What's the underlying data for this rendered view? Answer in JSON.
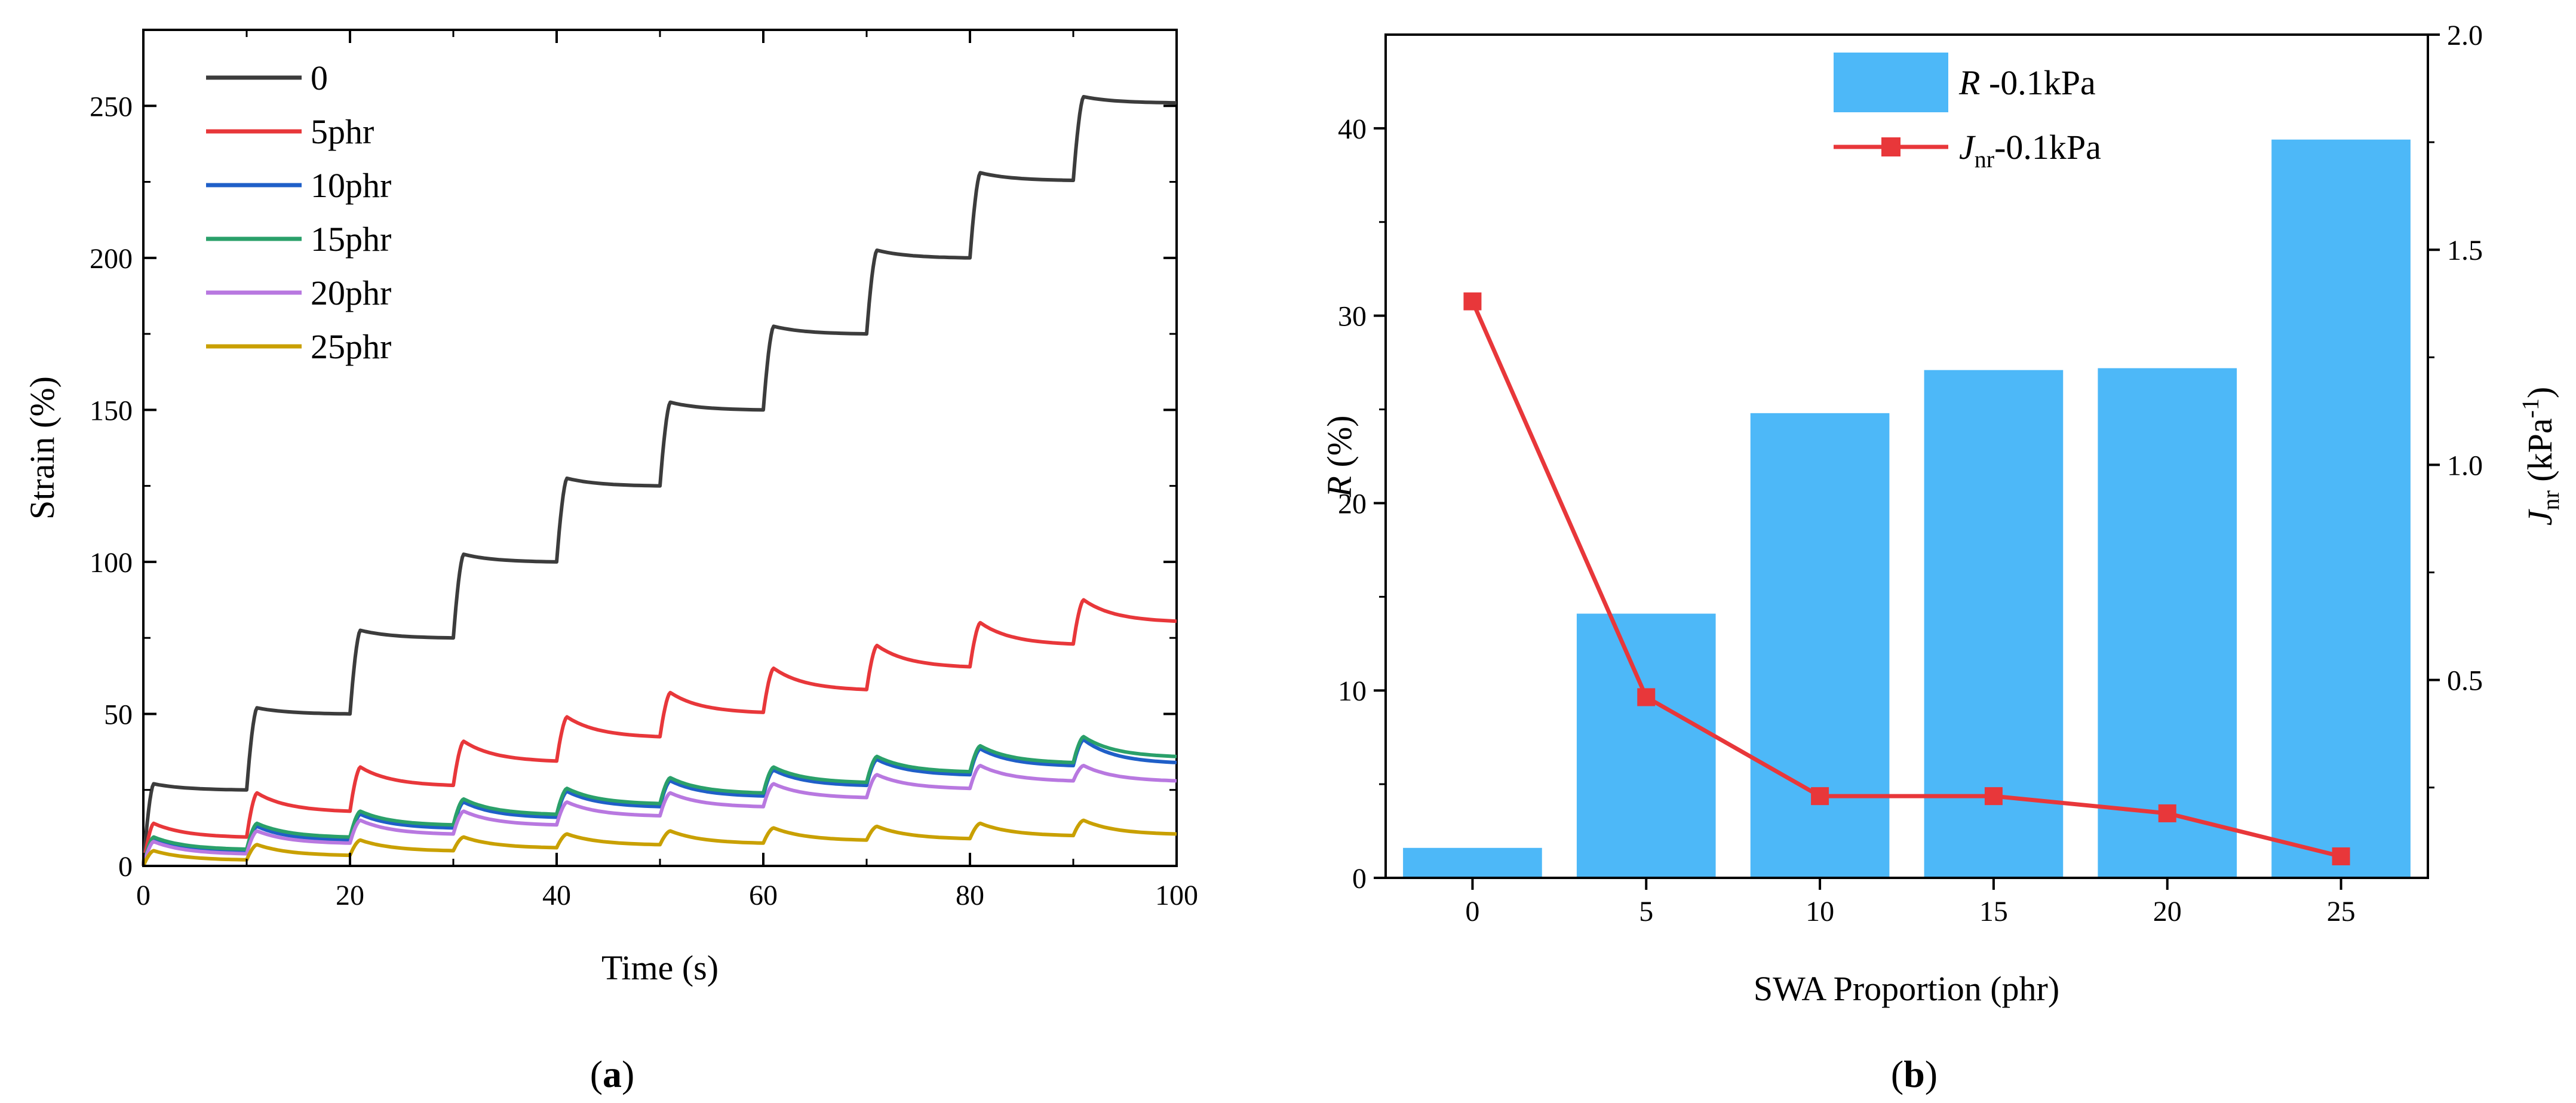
{
  "chart_data": [
    {
      "panel": "a",
      "type": "line",
      "caption": "a",
      "xlabel": "Time (s)",
      "ylabel": "Strain (%)",
      "xlim": [
        0,
        100
      ],
      "ylim": [
        0,
        275
      ],
      "xticks": [
        "0",
        "20",
        "40",
        "60",
        "80",
        "100"
      ],
      "yticks": [
        "0",
        "50",
        "100",
        "150",
        "200",
        "250"
      ],
      "cycle_period_s": 10,
      "creep_duration_s": 1,
      "cycles": 10,
      "series": [
        {
          "name": "0",
          "color": "#3c3c3c",
          "peaks": [
            27,
            52,
            77.5,
            102.5,
            127.5,
            152.5,
            177.5,
            202.5,
            228,
            253
          ],
          "troughs": [
            25,
            50,
            75,
            100,
            125,
            150,
            175,
            200,
            225.5,
            251
          ]
        },
        {
          "name": "5phr",
          "color": "#e8373a",
          "peaks": [
            14,
            24,
            32.5,
            41,
            49,
            57,
            65,
            72.5,
            80,
            87.5
          ],
          "troughs": [
            9.5,
            18,
            26.5,
            34.5,
            42.5,
            50.5,
            58,
            65.5,
            73,
            80.5
          ]
        },
        {
          "name": "10phr",
          "color": "#1f5fc8",
          "peaks": [
            9,
            13,
            17,
            21,
            24.5,
            28,
            31.5,
            35,
            38.5,
            41.5
          ],
          "troughs": [
            5,
            8.5,
            12.5,
            16,
            19.5,
            23,
            26.5,
            30,
            33,
            34
          ]
        },
        {
          "name": "15phr",
          "color": "#2aa06a",
          "peaks": [
            9.5,
            14,
            18,
            22,
            25.5,
            29,
            32.5,
            36,
            39.5,
            42.5
          ],
          "troughs": [
            5.5,
            9.5,
            13.5,
            17,
            20.5,
            24,
            27.5,
            31,
            34,
            36
          ]
        },
        {
          "name": "20phr",
          "color": "#b878e0",
          "peaks": [
            8,
            11.5,
            15,
            18,
            21,
            24,
            27,
            30,
            33,
            33
          ],
          "troughs": [
            4,
            7.5,
            10.5,
            13.5,
            16.5,
            19.5,
            22.5,
            25.5,
            28,
            28
          ]
        },
        {
          "name": "25phr",
          "color": "#c9a000",
          "peaks": [
            5,
            7,
            8.5,
            9.5,
            10.5,
            11.5,
            12.5,
            13,
            14,
            15
          ],
          "troughs": [
            2,
            3.5,
            5,
            6,
            7,
            7.5,
            8.5,
            9,
            10,
            10.5
          ]
        }
      ]
    },
    {
      "panel": "b",
      "type": "bar",
      "caption": "b",
      "xlabel": "SWA Proportion (phr)",
      "ylabel_italic": "R",
      "ylabel_rest": " (%)",
      "y2label_italic": "J",
      "y2label_sub": "nr",
      "y2label_rest": " (kPa",
      "y2label_sup": "-1",
      "y2label_close": ")",
      "categories": [
        "0",
        "5",
        "10",
        "15",
        "20",
        "25"
      ],
      "ylim": [
        0,
        45
      ],
      "yticks": [
        "0",
        "10",
        "20",
        "30",
        "40"
      ],
      "y2lim": [
        0.04,
        2.0
      ],
      "y2ticks": [
        "0.5",
        "1.0",
        "1.5",
        "2.0"
      ],
      "series": [
        {
          "name_italic": "R",
          "name_rest": " -0.1kPa",
          "type": "bar",
          "axis": "left",
          "color": "#4db8f8",
          "values": [
            1.6,
            14.1,
            24.8,
            27.1,
            27.2,
            39.4
          ]
        },
        {
          "name_italic": "J",
          "name_sub": "nr",
          "name_rest": "-0.1kPa",
          "type": "line",
          "axis": "right",
          "color": "#e8373a",
          "values": [
            1.38,
            0.46,
            0.23,
            0.23,
            0.19,
            0.09
          ]
        }
      ]
    }
  ]
}
